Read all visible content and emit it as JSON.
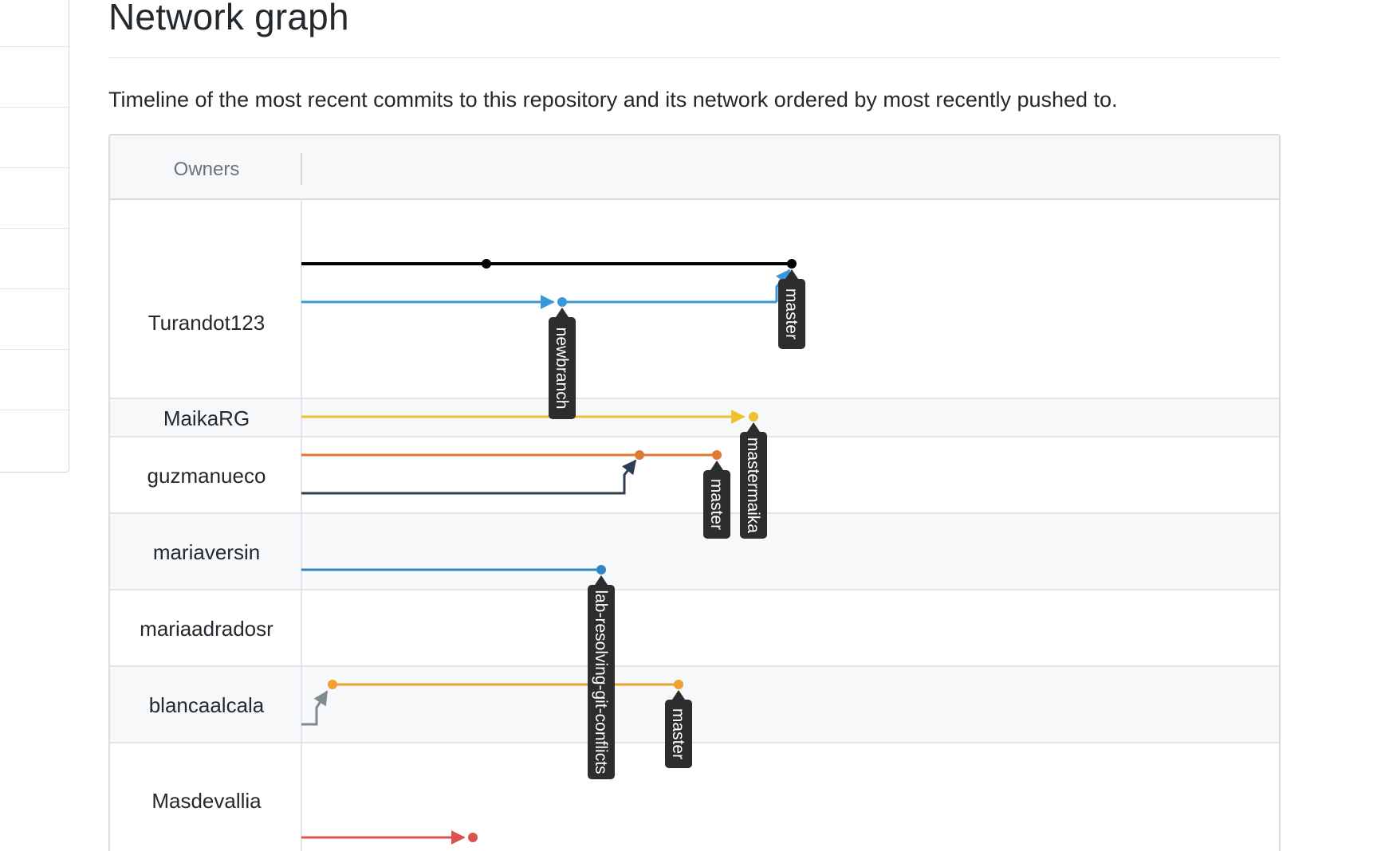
{
  "page": {
    "title": "Network graph",
    "description": "Timeline of the most recent commits to this repository and its network ordered by most recently pushed to."
  },
  "graph": {
    "owners_header": "Owners",
    "owners": [
      {
        "name": "Turandot123",
        "band": false
      },
      {
        "name": "MaikaRG",
        "band": true
      },
      {
        "name": "guzmanueco",
        "band": false
      },
      {
        "name": "mariaversin",
        "band": true
      },
      {
        "name": "mariaadradosr",
        "band": false
      },
      {
        "name": "blancaalcala",
        "band": true
      },
      {
        "name": "Masdevallia",
        "band": false
      }
    ],
    "branch_labels": [
      {
        "owner": "Turandot123",
        "label": "master",
        "color": "#000000"
      },
      {
        "owner": "Turandot123",
        "label": "newbranch",
        "color": "#3a98d8"
      },
      {
        "owner": "MaikaRG",
        "label": "mastermaika",
        "color": "#f0c030"
      },
      {
        "owner": "guzmanueco",
        "label": "master",
        "color": "#e07a30"
      },
      {
        "owner": "mariaversin",
        "label": "lab-resolving-git-conflicts",
        "color": "#2f86c4"
      },
      {
        "owner": "blancaalcala",
        "label": "master",
        "color": "#f0a030"
      }
    ],
    "colors": {
      "black": "#000000",
      "blue": "#3a98d8",
      "yellow": "#f0c030",
      "orange": "#e07a30",
      "navy": "#2c3e50",
      "steel_blue": "#2f86c4",
      "amber": "#f0a030",
      "gray": "#7f8c8d",
      "red": "#d9534f",
      "label_bg": "#2d2d2d"
    }
  }
}
